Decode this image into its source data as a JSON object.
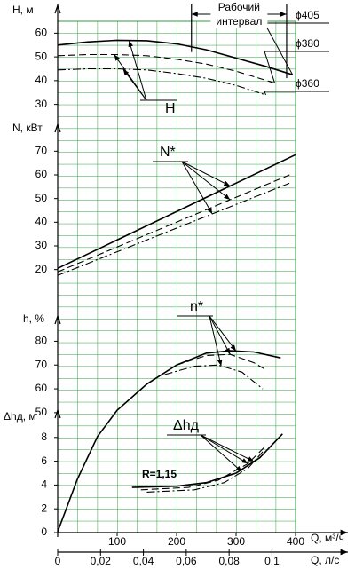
{
  "chart_data": [
    {
      "type": "line",
      "ylabel": "H, м",
      "xlim": [
        0,
        400
      ],
      "ylim": [
        25,
        65
      ],
      "yticks": [
        30,
        40,
        50,
        60
      ],
      "annotation": "H",
      "working_interval": {
        "label": [
          "Рабочий",
          "интервал"
        ],
        "x": [
          225,
          385
        ]
      },
      "series": [
        {
          "name": "ϕ405",
          "style": "solid",
          "color": "#000000",
          "x": [
            0,
            50,
            100,
            150,
            200,
            250,
            300,
            350,
            395
          ],
          "values": [
            55,
            56.3,
            57,
            56.8,
            55.5,
            53,
            49.5,
            46,
            42.5
          ]
        },
        {
          "name": "ϕ380",
          "style": "dashed",
          "color": "#000000",
          "x": [
            0,
            50,
            100,
            150,
            200,
            250,
            300,
            365
          ],
          "values": [
            50.5,
            51,
            51,
            50.5,
            49,
            47,
            44,
            39
          ]
        },
        {
          "name": "ϕ360",
          "style": "dashdot",
          "color": "#000000",
          "x": [
            0,
            50,
            100,
            150,
            200,
            250,
            300,
            350
          ],
          "values": [
            44.5,
            45,
            45,
            44.5,
            43,
            41,
            38,
            34
          ]
        }
      ]
    },
    {
      "type": "line",
      "ylabel": "N, кВт",
      "xlim": [
        0,
        400
      ],
      "ylim": [
        15,
        75
      ],
      "yticks": [
        20,
        30,
        40,
        50,
        60,
        70
      ],
      "annotation": "N*",
      "series": [
        {
          "style": "solid",
          "color": "#000000",
          "x": [
            0,
            400
          ],
          "values": [
            20.5,
            68.5
          ]
        },
        {
          "style": "dashed",
          "color": "#000000",
          "x": [
            0,
            390
          ],
          "values": [
            19,
            60
          ]
        },
        {
          "style": "dashdot",
          "color": "#000000",
          "x": [
            0,
            390
          ],
          "values": [
            17.5,
            56.5
          ]
        }
      ]
    },
    {
      "type": "line",
      "ylabel": "h, %",
      "xlim": [
        0,
        400
      ],
      "ylim": [
        0,
        85
      ],
      "yticks": [
        50,
        60,
        70,
        80
      ],
      "annotation": "n*",
      "series": [
        {
          "style": "solid",
          "color": "#000000",
          "x": [
            0,
            33,
            67,
            100,
            150,
            200,
            250,
            290,
            330,
            375
          ],
          "values": [
            0,
            22,
            40,
            51,
            62,
            70,
            75,
            76,
            75.5,
            73
          ]
        },
        {
          "style": "dashed",
          "color": "#000000",
          "x": [
            200,
            250,
            290,
            330,
            350
          ],
          "values": [
            70,
            74,
            74.5,
            71,
            68
          ]
        },
        {
          "style": "dashdot",
          "color": "#000000",
          "x": [
            180,
            230,
            270,
            310,
            345
          ],
          "values": [
            66,
            69.5,
            70,
            67,
            60
          ]
        }
      ]
    },
    {
      "type": "line",
      "ylabel": "Δhд, м",
      "xlim": [
        0,
        400
      ],
      "ylim": [
        0,
        10
      ],
      "yticks": [
        0,
        2,
        4,
        6,
        8
      ],
      "annotations": [
        "Δhд",
        "R=1,15"
      ],
      "xlabel": "Q, м³/ч",
      "xticks": [
        100,
        200,
        300,
        400
      ],
      "x2label": "Q, л/с",
      "x2lim": [
        0,
        0.111
      ],
      "x2ticks": [
        0,
        {
          "value": 0.02,
          "label": "0,02"
        },
        {
          "value": 0.04,
          "label": "0,04"
        },
        {
          "value": 0.06,
          "label": "0,06"
        },
        {
          "value": 0.08,
          "label": "0,08"
        },
        {
          "value": 0.1,
          "label": "0,1"
        }
      ],
      "series": [
        {
          "style": "solid",
          "color": "#000000",
          "x": [
            125,
            200,
            250,
            300,
            340,
            378
          ],
          "values": [
            3.8,
            3.9,
            4.2,
            5,
            6.3,
            8.3
          ]
        },
        {
          "style": "dashed",
          "color": "#000000",
          "x": [
            140,
            220,
            270,
            320,
            350
          ],
          "values": [
            3.6,
            3.8,
            4.4,
            5.8,
            7.3
          ]
        },
        {
          "style": "dashdot",
          "color": "#000000",
          "x": [
            150,
            230,
            280,
            320,
            345
          ],
          "values": [
            3.4,
            3.6,
            4.2,
            5.4,
            6.8
          ]
        }
      ]
    }
  ]
}
